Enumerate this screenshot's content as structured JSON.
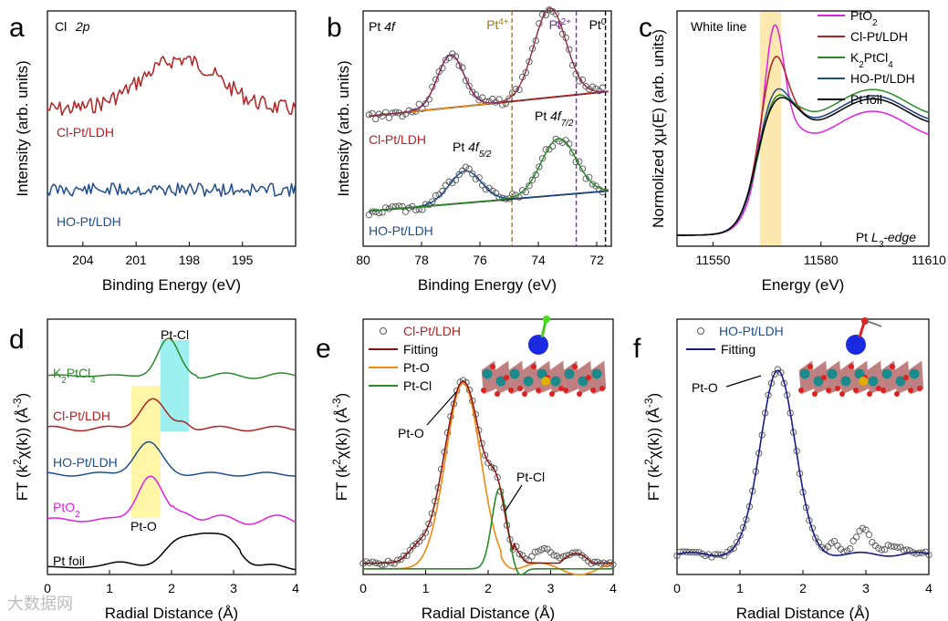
{
  "watermark": "大数据网",
  "colors": {
    "cl": "#b22222",
    "ho": "#1f4e8c",
    "pto2": "#e020e0",
    "k2": "#2a8a2a",
    "foil": "#000000",
    "fit_orange": "#f08a10",
    "fit_navy": "#1a1a8a",
    "pt4": "#a07a10",
    "pt2": "#7a2aa8",
    "pt0": "#000000",
    "yellow_band": "#fff6a8",
    "cyan_band": "#9ef0f0",
    "white_line_band": "#fde9b0"
  },
  "chart_data": [
    {
      "panel": "a",
      "type": "line",
      "title": "Cl 2p",
      "xlabel": "Binding Energy (eV)",
      "ylabel": "Intensity (arb. units)",
      "xlim": [
        206,
        192
      ],
      "xticks": [
        "204",
        "201",
        "198",
        "195"
      ],
      "series": [
        {
          "name": "Cl-Pt/LDH",
          "color": "#b22222"
        },
        {
          "name": "HO-Pt/LDH",
          "color": "#1f4e8c"
        }
      ]
    },
    {
      "panel": "b",
      "type": "line",
      "title": "Pt 4f",
      "xlabel": "Binding Energy (eV)",
      "ylabel": "Intensity (arb. units)",
      "xlim": [
        80,
        71.5
      ],
      "xticks": [
        "80",
        "78",
        "76",
        "74",
        "72"
      ],
      "reference_lines": [
        {
          "label": "Pt4+",
          "x": 74.9
        },
        {
          "label": "Pt2+",
          "x": 72.7
        },
        {
          "label": "Pt0",
          "x": 71.7
        }
      ],
      "annotations": [
        "Pt 4f7/2",
        "Pt 4f5/2"
      ],
      "series": [
        {
          "name": "Cl-Pt/LDH"
        },
        {
          "name": "HO-Pt/LDH"
        }
      ]
    },
    {
      "panel": "c",
      "type": "line",
      "title": "Pt L3-edge",
      "xlabel": "Energy (eV)",
      "ylabel": "Normolized χμ(E) (arb. units)",
      "xlim": [
        11540,
        11610
      ],
      "xticks": [
        "11550",
        "11580",
        "11610"
      ],
      "annotations": [
        "White line"
      ],
      "legend_position": "top-right",
      "series": [
        {
          "name": "PtO2",
          "color": "#e020e0"
        },
        {
          "name": "Cl-Pt/LDH",
          "color": "#b22222"
        },
        {
          "name": "K2PtCl4",
          "color": "#2a8a2a"
        },
        {
          "name": "HO-Pt/LDH",
          "color": "#1f4e8c"
        },
        {
          "name": "Pt foil",
          "color": "#000000"
        }
      ]
    },
    {
      "panel": "d",
      "type": "line",
      "xlabel": "Radial Distance (Å)",
      "ylabel": "FT (k2χ(k)) (Å-3)",
      "xlim": [
        0,
        4
      ],
      "xticks": [
        "0",
        "1",
        "2",
        "3",
        "4"
      ],
      "annotations": [
        "Pt-Cl",
        "Pt-O"
      ],
      "series": [
        {
          "name": "K2PtCl4"
        },
        {
          "name": "Cl-Pt/LDH"
        },
        {
          "name": "HO-Pt/LDH"
        },
        {
          "name": "PtO2"
        },
        {
          "name": "Pt foil"
        }
      ]
    },
    {
      "panel": "e",
      "type": "line",
      "xlabel": "Radial Distance (Å)",
      "ylabel": "FT (k2χ(k)) (Å-3)",
      "xlim": [
        0,
        4
      ],
      "xticks": [
        "0",
        "1",
        "2",
        "3",
        "4"
      ],
      "annotations": [
        "Pt-O",
        "Pt-Cl"
      ],
      "legend_position": "top-left",
      "series": [
        {
          "name": "Cl-Pt/LDH"
        },
        {
          "name": "Fitting"
        },
        {
          "name": "Pt-O"
        },
        {
          "name": "Pt-Cl"
        }
      ]
    },
    {
      "panel": "f",
      "type": "line",
      "xlabel": "Radial Distance (Å)",
      "ylabel": "FT (k2χ(k)) (Å-3)",
      "xlim": [
        0,
        4
      ],
      "xticks": [
        "0",
        "1",
        "2",
        "3",
        "4"
      ],
      "annotations": [
        "Pt-O"
      ],
      "legend_position": "top-left",
      "series": [
        {
          "name": "HO-Pt/LDH"
        },
        {
          "name": "Fitting"
        }
      ]
    }
  ]
}
